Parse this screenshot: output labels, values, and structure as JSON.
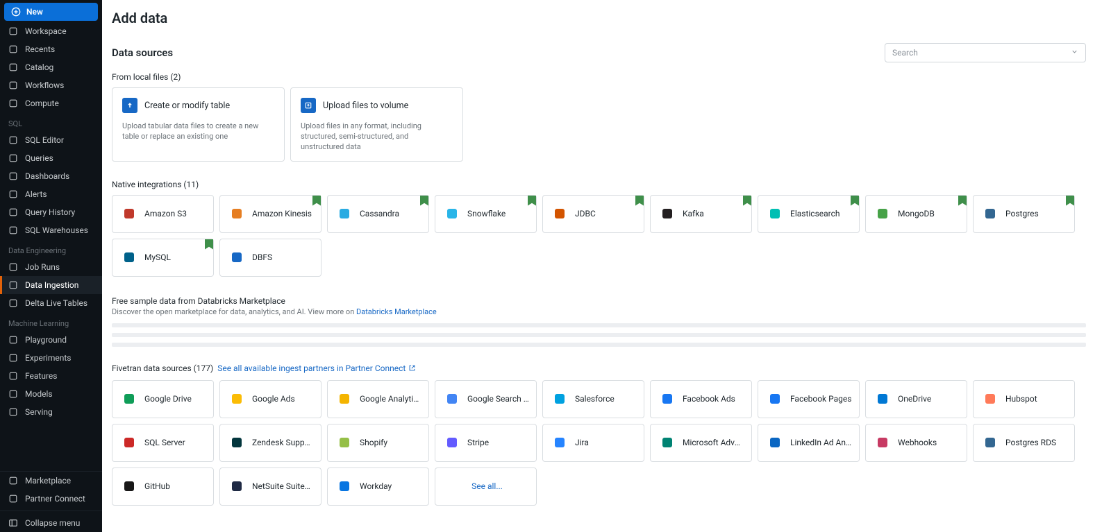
{
  "colors": {
    "sidebar_bg": "#0e1318",
    "sidebar_text": "#c7cbce",
    "sidebar_section_text": "#6b7278",
    "primary_button": "#0b6fd8",
    "active_accent": "#e36209",
    "card_border": "#d9dde1",
    "link": "#1768c5",
    "muted_text": "#6b7278",
    "badge_green": "#3f8f4a",
    "placeholder_bar": "#eceef1"
  },
  "sidebar": {
    "new_label": "New",
    "top": [
      {
        "label": "Workspace"
      },
      {
        "label": "Recents"
      },
      {
        "label": "Catalog"
      },
      {
        "label": "Workflows"
      },
      {
        "label": "Compute"
      }
    ],
    "sections": [
      {
        "title": "SQL",
        "items": [
          {
            "label": "SQL Editor"
          },
          {
            "label": "Queries"
          },
          {
            "label": "Dashboards"
          },
          {
            "label": "Alerts"
          },
          {
            "label": "Query History"
          },
          {
            "label": "SQL Warehouses"
          }
        ]
      },
      {
        "title": "Data Engineering",
        "items": [
          {
            "label": "Job Runs"
          },
          {
            "label": "Data Ingestion",
            "active": true
          },
          {
            "label": "Delta Live Tables"
          }
        ]
      },
      {
        "title": "Machine Learning",
        "items": [
          {
            "label": "Playground"
          },
          {
            "label": "Experiments"
          },
          {
            "label": "Features"
          },
          {
            "label": "Models"
          },
          {
            "label": "Serving"
          }
        ]
      }
    ],
    "bottom": [
      {
        "label": "Marketplace"
      },
      {
        "label": "Partner Connect"
      }
    ],
    "collapse": "Collapse menu"
  },
  "page": {
    "title": "Add data",
    "section_title": "Data sources",
    "search_placeholder": "Search"
  },
  "local_files": {
    "header": "From local files (2)",
    "cards": [
      {
        "title": "Create or modify table",
        "desc": "Upload tabular data files to create a new table or replace an existing one"
      },
      {
        "title": "Upload files to volume",
        "desc": "Upload files in any format, including structured, semi-structured, and unstructured data"
      }
    ]
  },
  "native": {
    "header": "Native integrations (11)",
    "items": [
      {
        "label": "Amazon S3",
        "badge": false,
        "color": "#c0392b"
      },
      {
        "label": "Amazon Kinesis",
        "badge": true,
        "color": "#e67e22"
      },
      {
        "label": "Cassandra",
        "badge": true,
        "color": "#29abe2"
      },
      {
        "label": "Snowflake",
        "badge": true,
        "color": "#29b5e8"
      },
      {
        "label": "JDBC",
        "badge": true,
        "color": "#d35400"
      },
      {
        "label": "Kafka",
        "badge": true,
        "color": "#231f20"
      },
      {
        "label": "Elasticsearch",
        "badge": true,
        "color": "#00bfb3"
      },
      {
        "label": "MongoDB",
        "badge": true,
        "color": "#47a248"
      },
      {
        "label": "Postgres",
        "badge": true,
        "color": "#336791"
      },
      {
        "label": "MySQL",
        "badge": true,
        "color": "#00618a"
      },
      {
        "label": "DBFS",
        "badge": false,
        "color": "#1768c5"
      }
    ]
  },
  "marketplace": {
    "header": "Free sample data from Databricks Marketplace",
    "desc_pre": "Discover the open marketplace for data, analytics, and AI. View more on ",
    "desc_link": "Databricks Marketplace"
  },
  "fivetran": {
    "header": "Fivetran data sources (177)",
    "partner_link": "See all available ingest partners in Partner Connect",
    "see_all": "See all...",
    "items": [
      {
        "label": "Google Drive",
        "color": "#0f9d58"
      },
      {
        "label": "Google Ads",
        "color": "#fbbc05"
      },
      {
        "label": "Google Analytics",
        "color": "#f4b400"
      },
      {
        "label": "Google Search C...",
        "color": "#4285f4"
      },
      {
        "label": "Salesforce",
        "color": "#00a1e0"
      },
      {
        "label": "Facebook Ads",
        "color": "#1877f2"
      },
      {
        "label": "Facebook Pages",
        "color": "#1877f2"
      },
      {
        "label": "OneDrive",
        "color": "#0078d4"
      },
      {
        "label": "Hubspot",
        "color": "#ff7a59"
      },
      {
        "label": "SQL Server",
        "color": "#cc2927"
      },
      {
        "label": "Zendesk Support",
        "color": "#03363d"
      },
      {
        "label": "Shopify",
        "color": "#95bf47"
      },
      {
        "label": "Stripe",
        "color": "#635bff"
      },
      {
        "label": "Jira",
        "color": "#2684ff"
      },
      {
        "label": "Microsoft Adverti...",
        "color": "#008373"
      },
      {
        "label": "LinkedIn Ad Anal...",
        "color": "#0a66c2"
      },
      {
        "label": "Webhooks",
        "color": "#c73a63"
      },
      {
        "label": "Postgres RDS",
        "color": "#336791"
      },
      {
        "label": "GitHub",
        "color": "#181717"
      },
      {
        "label": "NetSuite SuiteAn...",
        "color": "#1f2a44"
      },
      {
        "label": "Workday",
        "color": "#0875e1"
      }
    ]
  }
}
